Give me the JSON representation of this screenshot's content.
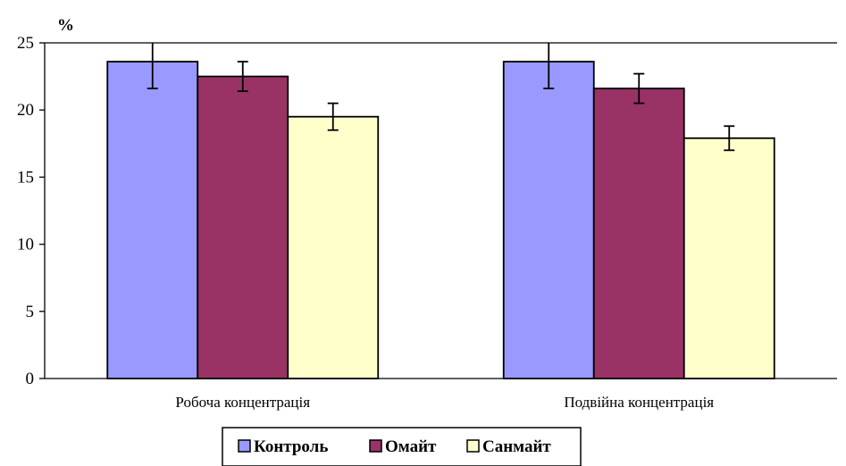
{
  "chart_data": {
    "type": "bar",
    "ylabel": "%",
    "ylim": [
      0,
      25
    ],
    "yticks": [
      "0",
      "5",
      "10",
      "15",
      "20",
      "25"
    ],
    "categories": [
      "Робоча концентрація",
      "Подвійна концентрація"
    ],
    "series": [
      {
        "name": "Контроль",
        "values": [
          23.6,
          23.6
        ],
        "errors": [
          2.0,
          2.0
        ],
        "color": "#9999FF"
      },
      {
        "name": "Омайт",
        "values": [
          22.5,
          21.6
        ],
        "errors": [
          1.1,
          1.1
        ],
        "color": "#993366"
      },
      {
        "name": "Санмайт",
        "values": [
          19.5,
          17.9
        ],
        "errors": [
          1.0,
          0.9
        ],
        "color": "#FFFFCC"
      }
    ],
    "grid": false,
    "legend_position": "bottom"
  }
}
